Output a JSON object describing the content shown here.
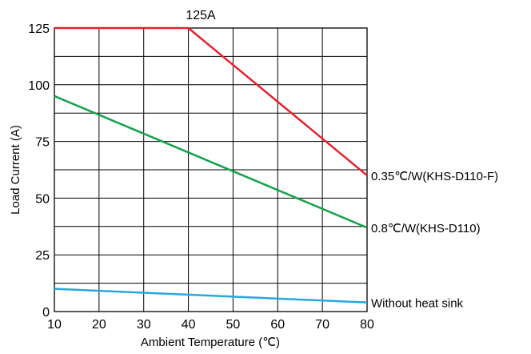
{
  "chart_data": {
    "type": "line",
    "xlabel": "Ambient Temperature (℃)",
    "ylabel": "Load Current (A)",
    "xlim": [
      10,
      80
    ],
    "ylim": [
      0,
      125
    ],
    "x_ticks": [
      10,
      20,
      30,
      40,
      50,
      60,
      70,
      80
    ],
    "y_ticks": [
      0,
      25,
      50,
      75,
      100,
      125
    ],
    "grid": true,
    "annotations": [
      {
        "text": "125A",
        "x": 40,
        "y": 125
      }
    ],
    "series": [
      {
        "name": "0.35℃/W(KHS-D110-F)",
        "color": "#e8202a",
        "x": [
          10,
          40,
          80
        ],
        "y": [
          125,
          125,
          60
        ]
      },
      {
        "name": "0.8℃/W(KHS-D110)",
        "color": "#13a24a",
        "x": [
          10,
          80
        ],
        "y": [
          95,
          37
        ]
      },
      {
        "name": "Without heat sink",
        "color": "#2aa7de",
        "x": [
          10,
          80
        ],
        "y": [
          10,
          4
        ]
      }
    ]
  }
}
